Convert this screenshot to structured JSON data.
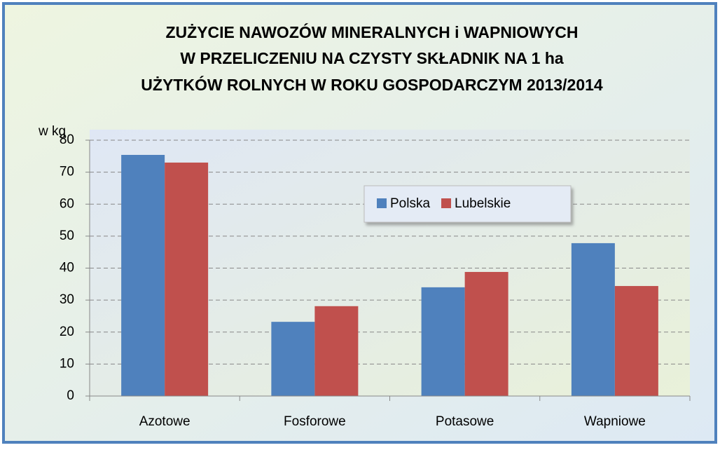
{
  "chart_data": {
    "type": "bar",
    "title": [
      "ZUŻYCIE NAWOZÓW MINERALNYCH i WAPNIOWYCH",
      "W PRZELICZENIU NA CZYSTY SKŁADNIK NA 1 ha",
      "UŻYTKÓW ROLNYCH W ROKU GOSPODARCZYM 2013/2014"
    ],
    "ylabel": "w kg",
    "categories": [
      "Azotowe",
      "Fosforowe",
      "Potasowe",
      "Wapniowe"
    ],
    "series": [
      {
        "name": "Polska",
        "color": "#4f81bd",
        "values": [
          75.4,
          23.2,
          34.0,
          47.8
        ]
      },
      {
        "name": "Lubelskie",
        "color": "#c0504d",
        "values": [
          73.0,
          28.1,
          38.8,
          34.4
        ]
      }
    ],
    "ylim": [
      0,
      80
    ],
    "yticks": [
      0,
      10,
      20,
      30,
      40,
      50,
      60,
      70,
      80
    ],
    "grid": true
  }
}
